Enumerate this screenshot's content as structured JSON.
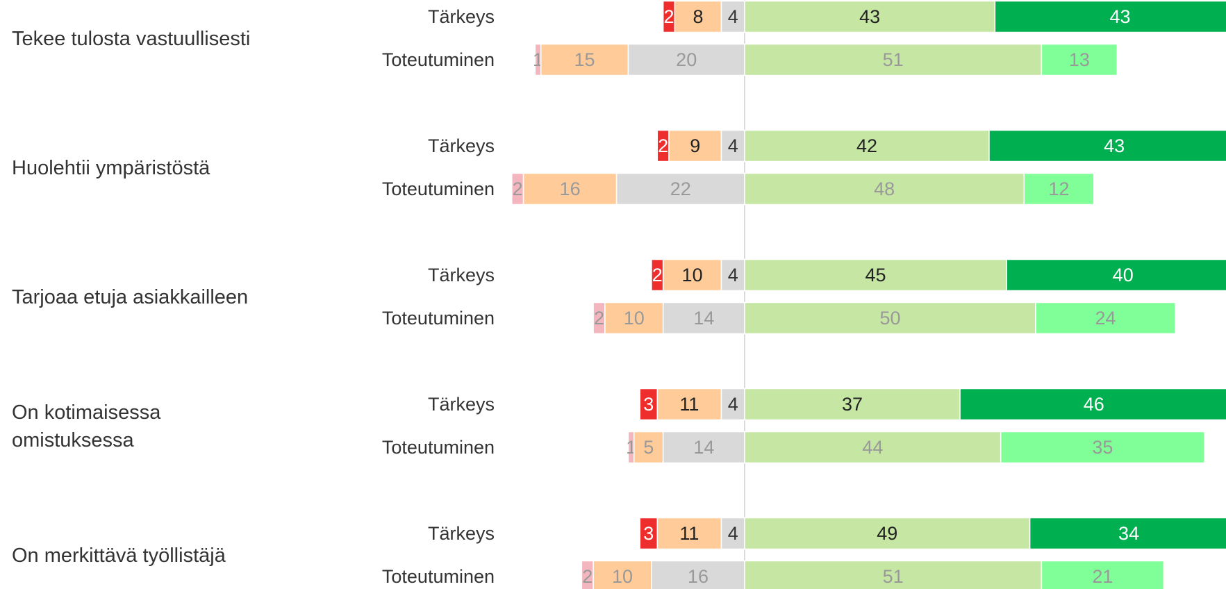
{
  "chart_data": {
    "type": "diverging-bar",
    "categories": [
      [
        "Tekee tulosta vastuullisesti"
      ],
      [
        "Huolehtii ympäristöstä"
      ],
      [
        "Tarjoaa etuja asiakkailleen"
      ],
      [
        "On kotimaisessa",
        "omistuksessa"
      ],
      [
        "On merkittävä työllistäjä"
      ]
    ],
    "neutral_index": 2,
    "series": [
      {
        "name": "Tärkeys",
        "colors": [
          "#ee2d2d",
          "#ffcc99",
          "#d9d9d9",
          "#c6e6a4",
          "#00b050"
        ],
        "label_colors": [
          "#ffffff",
          "#222222",
          "#333333",
          "#222222",
          "#ffffff"
        ],
        "values": [
          [
            2,
            8,
            4,
            43,
            43
          ],
          [
            2,
            9,
            4,
            42,
            43
          ],
          [
            2,
            10,
            4,
            45,
            40
          ],
          [
            3,
            11,
            4,
            37,
            46
          ],
          [
            3,
            11,
            4,
            49,
            34
          ]
        ]
      },
      {
        "name": "Toteutuminen",
        "colors": [
          "#f4b6be",
          "#ffcc99",
          "#d9d9d9",
          "#c6e6a4",
          "#80ff99"
        ],
        "label_colors": [
          "#999999",
          "#999999",
          "#999999",
          "#999999",
          "#999999"
        ],
        "values": [
          [
            1,
            15,
            20,
            51,
            13
          ],
          [
            2,
            16,
            22,
            48,
            12
          ],
          [
            2,
            10,
            14,
            50,
            24
          ],
          [
            1,
            5,
            14,
            44,
            35
          ],
          [
            2,
            10,
            16,
            51,
            21
          ]
        ]
      }
    ]
  }
}
